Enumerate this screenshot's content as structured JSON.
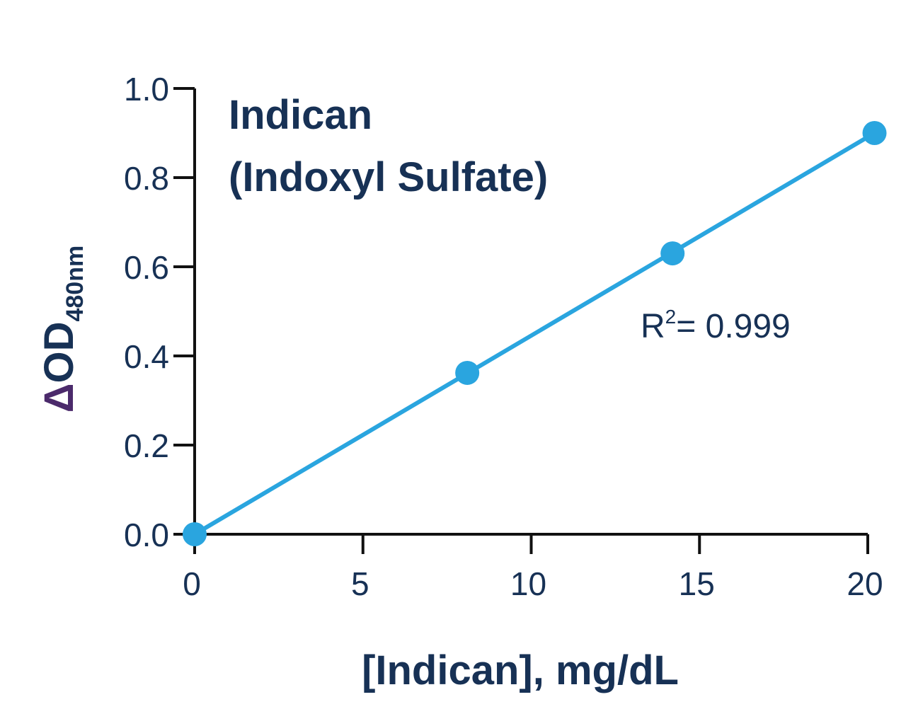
{
  "chart_data": {
    "type": "scatter",
    "title_lines": [
      "Indican",
      "(Indoxyl Sulfate)"
    ],
    "xlabel": "[Indican], mg/dL",
    "ylabel": {
      "prefix": "Δ",
      "main": "OD",
      "subscript": "480nm"
    },
    "xlim": [
      0,
      20
    ],
    "ylim": [
      0,
      1.0
    ],
    "xticks": [
      "0",
      "5",
      "10",
      "15",
      "20"
    ],
    "yticks": [
      "0.0",
      "0.2",
      "0.4",
      "0.6",
      "0.8",
      "1.0"
    ],
    "series": [
      {
        "points": [
          {
            "x": 0,
            "y": 0.0
          },
          {
            "x": 8.1,
            "y": 0.362
          },
          {
            "x": 14.2,
            "y": 0.63
          },
          {
            "x": 20.2,
            "y": 0.9
          }
        ]
      }
    ],
    "fit_line": {
      "x_start": 0,
      "y_start": 0.0,
      "x_end": 20.2,
      "y_end": 0.9
    },
    "annotation": {
      "main": "R",
      "sup": "2",
      "rest": "= 0.999"
    },
    "grid": false,
    "colors": {
      "series": "#2aa5df",
      "axis": "#111111",
      "text": "#173155",
      "delta": "#4b2a6b"
    }
  }
}
